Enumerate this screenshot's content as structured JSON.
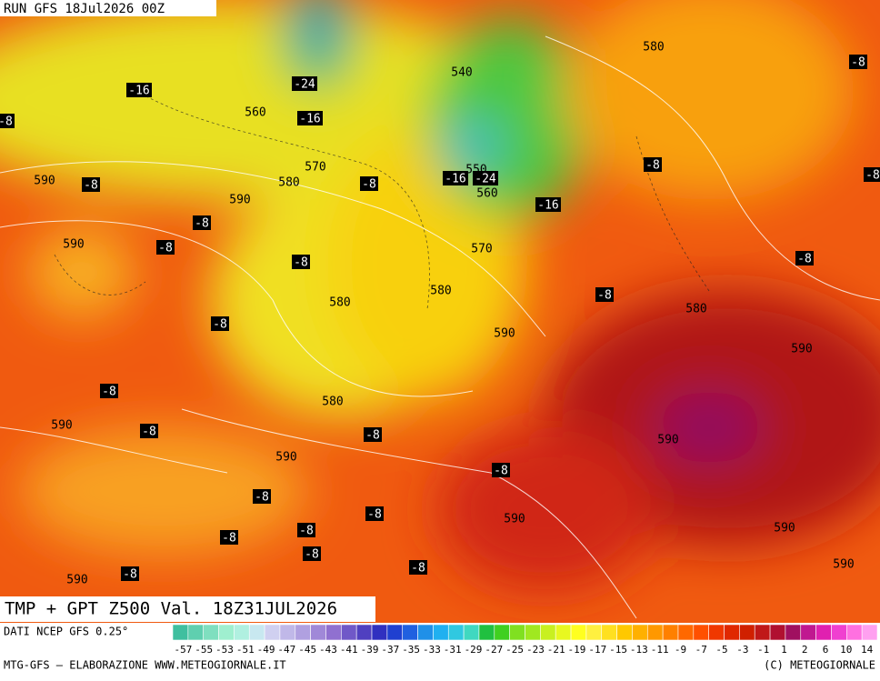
{
  "header": {
    "run": "RUN GFS 18Jul2026 00Z"
  },
  "map": {
    "title": "TMP + GPT Z500 Val. 18Z31JUL2026",
    "contour_labels": [
      "-16",
      "-24",
      "-16",
      "560",
      "540",
      "580",
      "-8",
      "-8",
      "590",
      "-8",
      "570",
      "580",
      "-8",
      "-16",
      "550",
      "-24",
      "560",
      "-16",
      "-8",
      "-8",
      "590",
      "-8",
      "590",
      "-8",
      "-8",
      "570",
      "-8",
      "580",
      "-8",
      "580",
      "580",
      "-8",
      "590",
      "590",
      "-8",
      "580",
      "590",
      "-8",
      "-8",
      "590",
      "590",
      "-8",
      "-8",
      "-8",
      "590",
      "590",
      "-8",
      "-8",
      "-8",
      "590",
      "-8",
      "-8",
      "590"
    ]
  },
  "colorbar": {
    "source": "DATI NCEP GFS 0.25°",
    "labels": [
      "-57",
      "-55",
      "-53",
      "-51",
      "-49",
      "-47",
      "-45",
      "-43",
      "-41",
      "-39",
      "-37",
      "-35",
      "-33",
      "-31",
      "-29",
      "-27",
      "-25",
      "-23",
      "-21",
      "-19",
      "-17",
      "-15",
      "-13",
      "-11",
      "-9",
      "-7",
      "-5",
      "-3",
      "-1",
      "1",
      "2",
      "6",
      "10",
      "14"
    ],
    "colors": [
      "#3fbf9f",
      "#5fcfaf",
      "#7fdfbf",
      "#9fefcf",
      "#b0f0e0",
      "#c8e8f0",
      "#d0d0f0",
      "#c0b8e8",
      "#b0a0e0",
      "#a088d8",
      "#9070d0",
      "#7058c8",
      "#5040c0",
      "#3030c0",
      "#2040d0",
      "#2060e0",
      "#2090e8",
      "#20b0f0",
      "#30c8e0",
      "#40d8c0",
      "#20c040",
      "#40d020",
      "#80e020",
      "#a0e820",
      "#c8f020",
      "#e8f820",
      "#ffff20",
      "#fff040",
      "#ffe020",
      "#ffc800",
      "#ffb000",
      "#ff9800",
      "#ff8000",
      "#ff6800",
      "#ff5000",
      "#f03800",
      "#e02800",
      "#d02000",
      "#c01818",
      "#b01030",
      "#a01060",
      "#c01890",
      "#e020b0",
      "#f040d0",
      "#ff70e0",
      "#ffa0f0"
    ]
  },
  "footer": {
    "left": "MTG-GFS — ELABORAZIONE WWW.METEOGIORNALE.IT",
    "right": "(C) METEOGIORNALE"
  }
}
